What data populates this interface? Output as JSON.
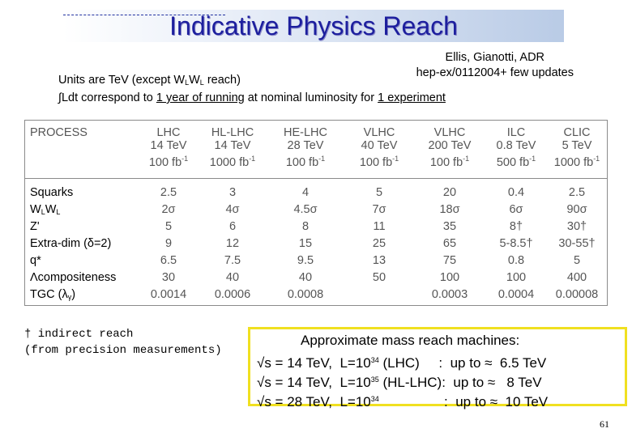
{
  "title": "Indicative Physics Reach",
  "authors_line1": "Ellis, Gianotti, ADR",
  "authors_line2": "hep-ex/0112004+ few updates",
  "units_prefix": "Units are TeV (except W",
  "units_sub1": "L",
  "units_mid": "W",
  "units_sub2": "L",
  "units_suffix": " reach)",
  "ldt_symbol": "∫",
  "ldt_prefix": "Ldt  correspond to ",
  "ldt_underline1": "1 year of running",
  "ldt_mid": " at nominal luminosity for ",
  "ldt_underline2": "1 experiment",
  "table": {
    "process_header": "PROCESS",
    "processes": [
      "Squarks",
      "WLWL",
      "Z'",
      "Extra-dim (δ=2)",
      "q*",
      "Λcompositeness",
      "TGC (λγ)"
    ],
    "columns": [
      {
        "name": "LHC",
        "energy": "14 TeV",
        "lumi": "100 fb",
        "lumi_sup": "-1",
        "values": [
          "2.5",
          "2σ",
          "5",
          "9",
          "6.5",
          "30",
          "0.0014"
        ]
      },
      {
        "name": "HL-LHC",
        "energy": "14 TeV",
        "lumi": "1000 fb",
        "lumi_sup": "-1",
        "values": [
          "3",
          "4σ",
          "6",
          "12",
          "7.5",
          "40",
          "0.0006"
        ]
      },
      {
        "name": "HE-LHC",
        "energy": "28 TeV",
        "lumi": "100 fb",
        "lumi_sup": "-1",
        "values": [
          "4",
          "4.5σ",
          "8",
          "15",
          "9.5",
          "40",
          "0.0008"
        ]
      },
      {
        "name": "VLHC",
        "energy": "40 TeV",
        "lumi": "100 fb",
        "lumi_sup": "-1",
        "values": [
          "5",
          "7σ",
          "11",
          "25",
          "13",
          "50",
          ""
        ]
      },
      {
        "name": "VLHC",
        "energy": "200 TeV",
        "lumi": "100 fb",
        "lumi_sup": "-1",
        "values": [
          "20",
          "18σ",
          "35",
          "65",
          "75",
          "100",
          "0.0003"
        ]
      },
      {
        "name": "ILC",
        "energy": "0.8 TeV",
        "lumi": "500 fb",
        "lumi_sup": "-1",
        "values": [
          "0.4",
          "6σ",
          "8†",
          "5-8.5†",
          "0.8",
          "100",
          "0.0004"
        ]
      },
      {
        "name": "CLIC",
        "energy": "5 TeV",
        "lumi": "1000 fb",
        "lumi_sup": "-1",
        "values": [
          "2.5",
          "90σ",
          "30†",
          "30-55†",
          "5",
          "400",
          "0.00008"
        ]
      }
    ]
  },
  "dagger_line1": "† indirect reach",
  "dagger_line2": "(from precision measurements)",
  "mass_box": {
    "heading": "Approximate mass reach machines:",
    "rows": [
      {
        "sqrt": "√s = 14 TeV,",
        "lumi": "L=10",
        "exp": "34",
        "label": " (LHC)     :  up to ≈  6.5 TeV"
      },
      {
        "sqrt": "√s = 14 TeV,",
        "lumi": "L=10",
        "exp": "35",
        "label": " (HL-LHC):  up to ≈   8 TeV"
      },
      {
        "sqrt": "√s = 28 TeV,",
        "lumi": "L=10",
        "exp": "34",
        "label": "                 :  up to ≈  10 TeV"
      }
    ]
  },
  "page_number": "61"
}
